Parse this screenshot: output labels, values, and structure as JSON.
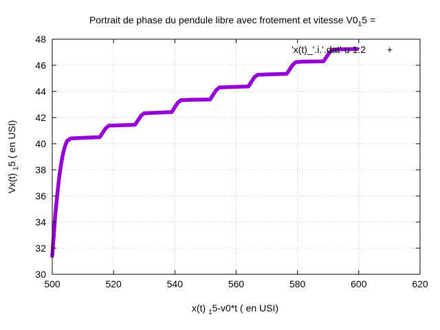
{
  "chart_data": {
    "type": "scatter",
    "title": {
      "main": "Portrait de phase du pendule libre avec frotement et vitesse V0",
      "sub": "1",
      "tail": "5 ="
    },
    "xlabel": {
      "main": "x(t) ",
      "sub": "1",
      "tail": "5-v0*t ( en USI)"
    },
    "ylabel": {
      "main": "Vx(t) ",
      "sub": "1",
      "tail": "5 ( en USI)"
    },
    "xlim": [
      500,
      620
    ],
    "ylim": [
      30,
      48
    ],
    "x_ticks": [
      500,
      520,
      540,
      560,
      580,
      600,
      620
    ],
    "y_ticks": [
      30,
      32,
      34,
      36,
      38,
      40,
      42,
      44,
      46,
      48
    ],
    "x_tick_labels": [
      "500",
      "520",
      "540",
      "560",
      "580",
      "600",
      "620"
    ],
    "y_tick_labels": [
      "30",
      "32",
      "34",
      "36",
      "38",
      "40",
      "42",
      "44",
      "46",
      "48"
    ],
    "grid": true,
    "legend": {
      "label": "'x(t)_'.i.'.dat' u 1:2",
      "marker": "+",
      "position": "top-right"
    },
    "series": [
      {
        "name": "'x(t)_'.i.'.dat' u 1:2",
        "color": "#9400d3",
        "points": [
          [
            500.0,
            31.4
          ],
          [
            500.5,
            33.0
          ],
          [
            501.0,
            34.6
          ],
          [
            501.6,
            36.0
          ],
          [
            502.2,
            37.3
          ],
          [
            502.8,
            38.3
          ],
          [
            503.4,
            39.1
          ],
          [
            504.0,
            39.7
          ],
          [
            504.8,
            40.2
          ],
          [
            506.0,
            40.4
          ],
          [
            510.0,
            40.45
          ],
          [
            515.5,
            40.5
          ],
          [
            516.5,
            40.85
          ],
          [
            517.5,
            41.2
          ],
          [
            518.5,
            41.38
          ],
          [
            521.0,
            41.4
          ],
          [
            527.0,
            41.45
          ],
          [
            528.0,
            41.8
          ],
          [
            529.0,
            42.15
          ],
          [
            530.0,
            42.33
          ],
          [
            533.0,
            42.36
          ],
          [
            539.0,
            42.42
          ],
          [
            540.0,
            42.8
          ],
          [
            541.0,
            43.15
          ],
          [
            542.0,
            43.33
          ],
          [
            545.0,
            43.36
          ],
          [
            551.5,
            43.38
          ],
          [
            552.5,
            43.75
          ],
          [
            553.5,
            44.1
          ],
          [
            554.5,
            44.3
          ],
          [
            557.0,
            44.33
          ],
          [
            564.0,
            44.38
          ],
          [
            565.0,
            44.75
          ],
          [
            566.0,
            45.1
          ],
          [
            567.0,
            45.27
          ],
          [
            570.0,
            45.3
          ],
          [
            576.5,
            45.35
          ],
          [
            577.5,
            45.7
          ],
          [
            578.5,
            46.05
          ],
          [
            579.5,
            46.25
          ],
          [
            582.0,
            46.28
          ],
          [
            588.5,
            46.3
          ],
          [
            589.5,
            46.65
          ],
          [
            590.5,
            47.0
          ],
          [
            591.5,
            47.2
          ],
          [
            595.0,
            47.23
          ],
          [
            599.5,
            47.25
          ]
        ]
      }
    ]
  }
}
